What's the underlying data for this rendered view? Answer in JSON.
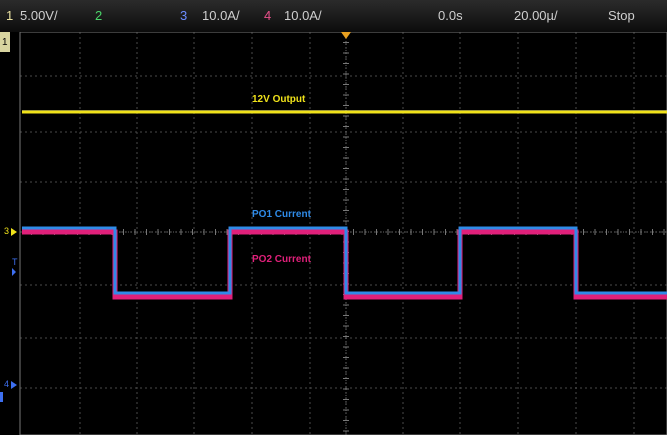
{
  "status_bar": {
    "ch1_num": "1",
    "ch1_scale": "5.00V/",
    "ch2_num": "2",
    "ch3_num": "3",
    "ch3_scale": "10.0A/",
    "ch4_num": "4",
    "ch4_scale": "10.0A/",
    "time_offset": "0.0s",
    "time_scale": "20.00µ/",
    "run_state": "Stop"
  },
  "traces": [
    {
      "name": "12V Output",
      "color": "#f0e21a"
    },
    {
      "name": "PO1 Current",
      "color": "#2f8be8"
    },
    {
      "name": "PO2 Current",
      "color": "#e0207a"
    }
  ],
  "channel_colors": {
    "ch1": "#f0e21a",
    "ch2": "#2fd35a",
    "ch3": "#3d6ff0",
    "ch4": "#e0207a"
  },
  "markers": {
    "ch1": "1",
    "ch3": "3",
    "ch4": "4",
    "trigger": "T"
  }
}
